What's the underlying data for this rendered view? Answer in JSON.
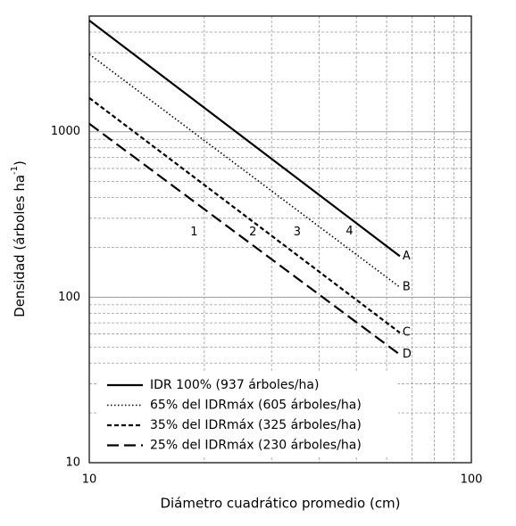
{
  "chart_data": {
    "type": "line",
    "xlabel": "Diámetro cuadrático promedio (cm)",
    "ylabel": "Densidad (árboles ha",
    "ylabel_sup": "-1",
    "ylabel_end": ")",
    "x": [
      10,
      65
    ],
    "series": [
      {
        "name": "IDR 100% (937 árboles/ha)",
        "end_label": "A",
        "color": "#000000",
        "dash": "solid",
        "values": [
          4700,
          177
        ]
      },
      {
        "name": "65% del IDRmáx (605 árboles/ha)",
        "end_label": "B",
        "color": "#000000",
        "dash": "dotted",
        "values": [
          2940,
          115
        ]
      },
      {
        "name": "35% del IDRmáx (325 árboles/ha)",
        "end_label": "C",
        "color": "#000000",
        "dash": "short-dash",
        "values": [
          1600,
          61
        ]
      },
      {
        "name": "25% del IDRmáx (230 árboles/ha)",
        "end_label": "D",
        "color": "#000000",
        "dash": "long-dash",
        "values": [
          1118,
          45
        ]
      }
    ],
    "annotations": [
      {
        "text": "1",
        "x": 18.8,
        "y": 247
      },
      {
        "text": "2",
        "x": 26.8,
        "y": 247
      },
      {
        "text": "3",
        "x": 35,
        "y": 247
      },
      {
        "text": "4",
        "x": 48,
        "y": 250
      }
    ],
    "log_x": true,
    "log_y": true,
    "xlim": [
      10,
      100
    ],
    "ylim": [
      10,
      5000
    ],
    "xticks": [
      10,
      100
    ],
    "yticks": [
      10,
      100,
      1000
    ],
    "xminorticks": [
      20,
      30,
      40,
      50,
      60,
      70,
      80,
      90
    ],
    "yminorticks": [
      20,
      30,
      40,
      50,
      60,
      70,
      80,
      90,
      200,
      300,
      400,
      500,
      600,
      700,
      800,
      900,
      2000,
      3000,
      4000
    ],
    "grid": true,
    "legend": "lower-left"
  }
}
